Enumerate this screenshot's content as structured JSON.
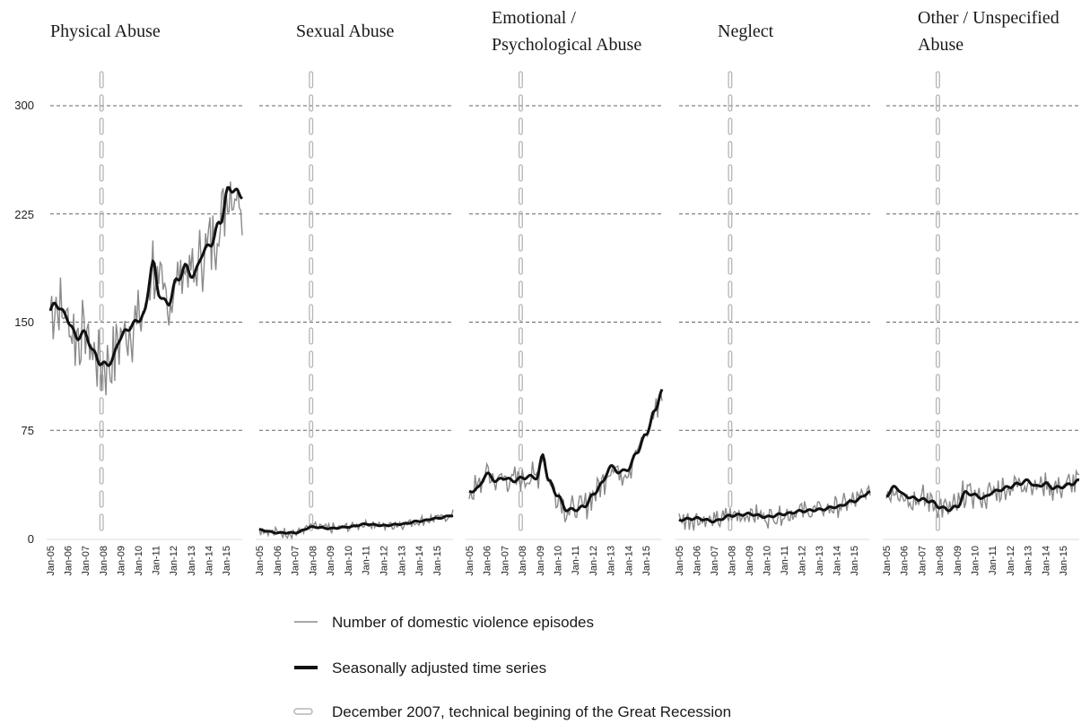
{
  "chart_data": {
    "type": "line",
    "panel_titles": [
      [
        "Physical Abuse"
      ],
      [
        "Sexual Abuse"
      ],
      [
        "Emotional /",
        "Psychological Abuse"
      ],
      [
        "Neglect"
      ],
      [
        "Other / Unspecified",
        "Abuse"
      ]
    ],
    "y_ticks": [
      "300",
      "225",
      "150",
      "75",
      "0"
    ],
    "ylim": [
      0,
      300
    ],
    "x_ticks": [
      "Jan-05",
      "Jan-06",
      "Jan-07",
      "Jan-08",
      "Jan-09",
      "Jan-10",
      "Jan-11",
      "Jan-12",
      "Jan-13",
      "Jan-14",
      "Jan-15"
    ],
    "x_range": [
      "2005-01",
      "2015-12"
    ],
    "grid": "horizontal dashed",
    "recession_marker": {
      "date": "2007-12"
    },
    "legend": {
      "placement": "bottom",
      "items": [
        {
          "label": "Number of domestic violence episodes",
          "style": "thin-gray"
        },
        {
          "label": "Seasonally adjusted time series",
          "style": "thick-black"
        },
        {
          "label": "December 2007, technical begining of the Great Recession",
          "style": "dashed-outline"
        }
      ]
    },
    "colors": {
      "raw": "#8a8a8a",
      "adjusted": "#111111",
      "grid": "#666666",
      "marker": "#b5b5b5"
    },
    "series": [
      {
        "panel": "Physical Abuse",
        "seasonally_adjusted_anchors": [
          [
            0,
            158
          ],
          [
            4,
            163
          ],
          [
            10,
            155
          ],
          [
            18,
            140
          ],
          [
            24,
            142
          ],
          [
            30,
            128
          ],
          [
            36,
            120
          ],
          [
            42,
            123
          ],
          [
            48,
            140
          ],
          [
            56,
            148
          ],
          [
            64,
            155
          ],
          [
            70,
            192
          ],
          [
            74,
            170
          ],
          [
            80,
            162
          ],
          [
            86,
            178
          ],
          [
            92,
            188
          ],
          [
            98,
            182
          ],
          [
            104,
            198
          ],
          [
            110,
            205
          ],
          [
            116,
            220
          ],
          [
            122,
            243
          ],
          [
            131,
            238
          ]
        ],
        "raw_amplitude": 20
      },
      {
        "panel": "Sexual Abuse",
        "seasonally_adjusted_anchors": [
          [
            0,
            6
          ],
          [
            12,
            4
          ],
          [
            24,
            4
          ],
          [
            36,
            8
          ],
          [
            48,
            7
          ],
          [
            60,
            8
          ],
          [
            72,
            10
          ],
          [
            84,
            9
          ],
          [
            96,
            10
          ],
          [
            108,
            12
          ],
          [
            120,
            14
          ],
          [
            131,
            16
          ]
        ],
        "raw_amplitude": 3
      },
      {
        "panel": "Emotional / Psychological Abuse",
        "seasonally_adjusted_anchors": [
          [
            0,
            32
          ],
          [
            6,
            35
          ],
          [
            12,
            45
          ],
          [
            18,
            40
          ],
          [
            24,
            42
          ],
          [
            30,
            40
          ],
          [
            36,
            42
          ],
          [
            42,
            43
          ],
          [
            46,
            42
          ],
          [
            50,
            58
          ],
          [
            54,
            40
          ],
          [
            60,
            30
          ],
          [
            66,
            20
          ],
          [
            72,
            20
          ],
          [
            78,
            22
          ],
          [
            84,
            30
          ],
          [
            90,
            38
          ],
          [
            96,
            50
          ],
          [
            102,
            46
          ],
          [
            108,
            48
          ],
          [
            114,
            60
          ],
          [
            120,
            72
          ],
          [
            126,
            88
          ],
          [
            131,
            103
          ]
        ],
        "raw_amplitude": 8
      },
      {
        "panel": "Neglect",
        "seasonally_adjusted_anchors": [
          [
            0,
            13
          ],
          [
            12,
            14
          ],
          [
            24,
            12
          ],
          [
            36,
            16
          ],
          [
            48,
            17
          ],
          [
            60,
            15
          ],
          [
            72,
            17
          ],
          [
            84,
            19
          ],
          [
            96,
            20
          ],
          [
            108,
            22
          ],
          [
            120,
            26
          ],
          [
            131,
            32
          ]
        ],
        "raw_amplitude": 6
      },
      {
        "panel": "Other / Unspecified Abuse",
        "seasonally_adjusted_anchors": [
          [
            0,
            30
          ],
          [
            6,
            36
          ],
          [
            12,
            30
          ],
          [
            18,
            28
          ],
          [
            24,
            27
          ],
          [
            30,
            26
          ],
          [
            36,
            22
          ],
          [
            42,
            20
          ],
          [
            48,
            22
          ],
          [
            54,
            32
          ],
          [
            60,
            30
          ],
          [
            66,
            28
          ],
          [
            72,
            32
          ],
          [
            78,
            34
          ],
          [
            84,
            36
          ],
          [
            90,
            38
          ],
          [
            96,
            40
          ],
          [
            102,
            36
          ],
          [
            108,
            38
          ],
          [
            114,
            35
          ],
          [
            120,
            36
          ],
          [
            126,
            38
          ],
          [
            131,
            40
          ]
        ],
        "raw_amplitude": 8
      }
    ]
  }
}
